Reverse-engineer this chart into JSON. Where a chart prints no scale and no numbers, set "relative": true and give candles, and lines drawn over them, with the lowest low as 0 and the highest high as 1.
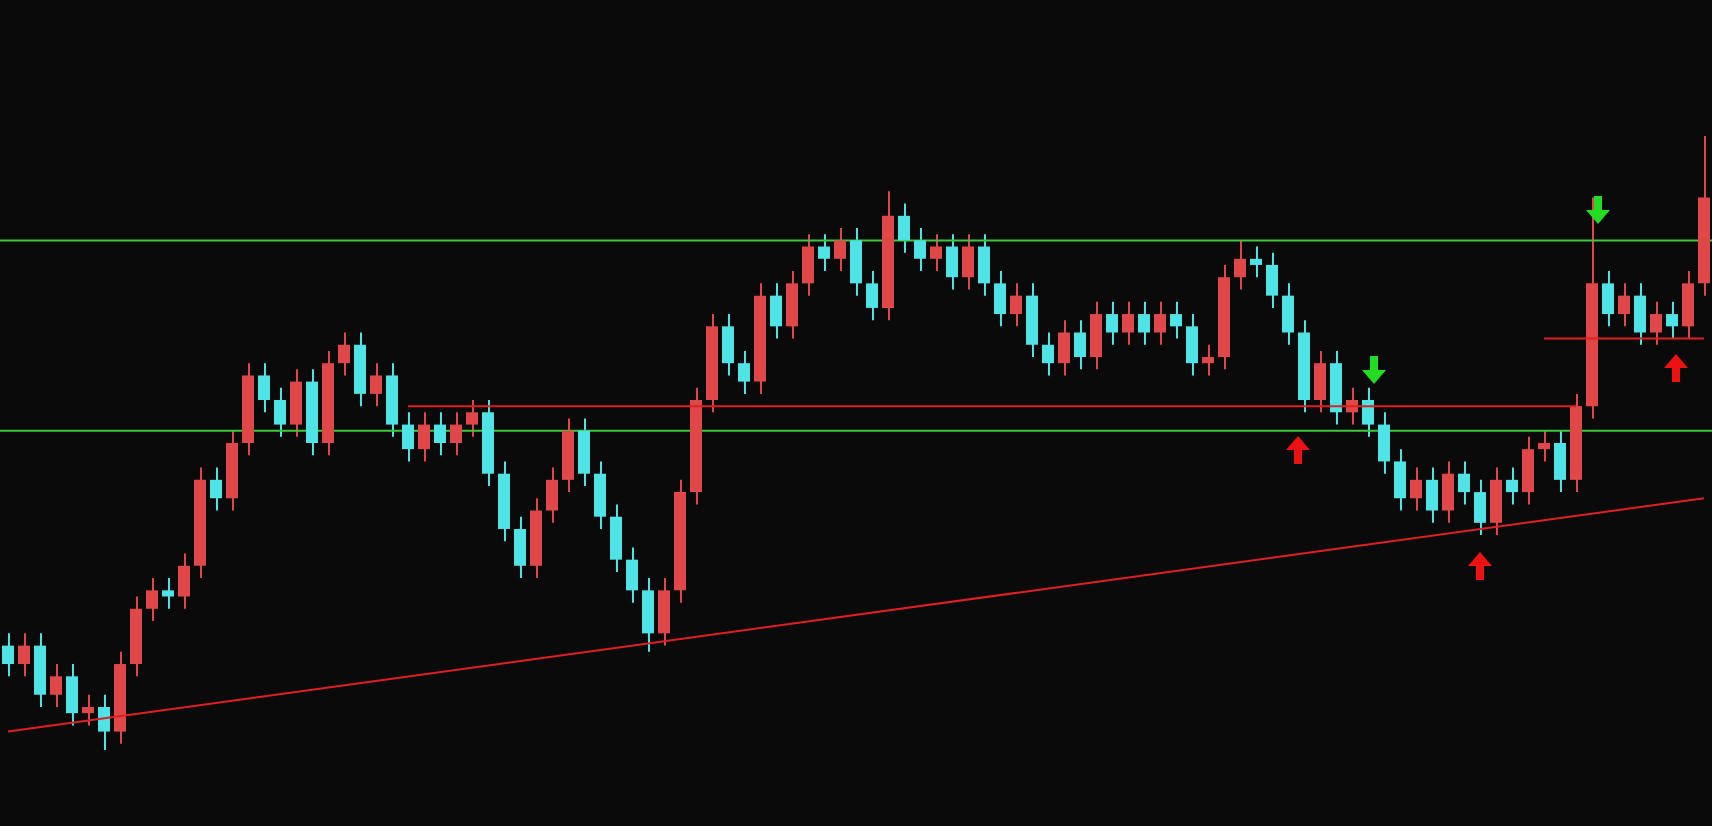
{
  "chart_data": {
    "type": "candlestick",
    "relative": true,
    "legend": false,
    "categories": [
      null,
      null,
      null,
      null,
      null,
      null,
      null,
      null,
      null,
      null,
      null,
      null,
      null,
      null,
      null,
      null,
      null,
      null,
      null,
      null,
      null,
      null,
      null,
      null,
      null,
      null,
      null,
      null,
      null,
      null,
      null,
      null,
      null,
      null,
      null,
      null,
      null,
      null,
      null,
      null,
      null,
      null,
      null,
      null,
      null,
      null,
      null,
      null,
      null,
      null,
      null,
      null,
      null,
      null,
      null,
      null,
      null,
      null,
      null,
      null,
      null,
      null,
      null,
      null,
      null,
      null,
      null,
      null,
      null,
      null,
      null,
      null,
      null,
      null,
      null,
      null,
      null,
      null,
      null,
      null,
      null,
      null,
      null,
      null,
      null,
      null,
      null,
      null,
      null,
      null,
      null,
      null,
      null,
      null,
      null,
      null,
      null,
      null,
      null,
      null,
      null,
      null,
      null,
      null,
      null,
      null,
      null
    ],
    "ohlc": [
      [
        0.17,
        0.19,
        0.12,
        0.14
      ],
      [
        0.14,
        0.19,
        0.12,
        0.17
      ],
      [
        0.17,
        0.19,
        0.07,
        0.09
      ],
      [
        0.09,
        0.14,
        0.07,
        0.12
      ],
      [
        0.12,
        0.14,
        0.04,
        0.06
      ],
      [
        0.06,
        0.09,
        0.04,
        0.07
      ],
      [
        0.07,
        0.09,
        0.0,
        0.03
      ],
      [
        0.03,
        0.16,
        0.01,
        0.14
      ],
      [
        0.14,
        0.25,
        0.12,
        0.23
      ],
      [
        0.23,
        0.28,
        0.21,
        0.26
      ],
      [
        0.26,
        0.28,
        0.23,
        0.25
      ],
      [
        0.25,
        0.32,
        0.23,
        0.3
      ],
      [
        0.3,
        0.46,
        0.28,
        0.44
      ],
      [
        0.44,
        0.46,
        0.39,
        0.41
      ],
      [
        0.41,
        0.52,
        0.39,
        0.5
      ],
      [
        0.5,
        0.63,
        0.48,
        0.61
      ],
      [
        0.61,
        0.63,
        0.55,
        0.57
      ],
      [
        0.57,
        0.59,
        0.51,
        0.53
      ],
      [
        0.53,
        0.62,
        0.51,
        0.6
      ],
      [
        0.6,
        0.62,
        0.48,
        0.5
      ],
      [
        0.5,
        0.65,
        0.48,
        0.63
      ],
      [
        0.63,
        0.68,
        0.61,
        0.66
      ],
      [
        0.66,
        0.68,
        0.56,
        0.58
      ],
      [
        0.58,
        0.63,
        0.56,
        0.61
      ],
      [
        0.61,
        0.63,
        0.51,
        0.53
      ],
      [
        0.53,
        0.55,
        0.47,
        0.49
      ],
      [
        0.49,
        0.55,
        0.47,
        0.53
      ],
      [
        0.53,
        0.55,
        0.48,
        0.5
      ],
      [
        0.5,
        0.55,
        0.48,
        0.53
      ],
      [
        0.53,
        0.57,
        0.51,
        0.55
      ],
      [
        0.55,
        0.57,
        0.43,
        0.45
      ],
      [
        0.45,
        0.47,
        0.34,
        0.36
      ],
      [
        0.36,
        0.38,
        0.28,
        0.3
      ],
      [
        0.3,
        0.41,
        0.28,
        0.39
      ],
      [
        0.39,
        0.46,
        0.37,
        0.44
      ],
      [
        0.44,
        0.54,
        0.42,
        0.52
      ],
      [
        0.52,
        0.54,
        0.43,
        0.45
      ],
      [
        0.45,
        0.47,
        0.36,
        0.38
      ],
      [
        0.38,
        0.4,
        0.29,
        0.31
      ],
      [
        0.31,
        0.33,
        0.24,
        0.26
      ],
      [
        0.26,
        0.28,
        0.16,
        0.19
      ],
      [
        0.19,
        0.28,
        0.17,
        0.26
      ],
      [
        0.26,
        0.44,
        0.24,
        0.42
      ],
      [
        0.42,
        0.59,
        0.4,
        0.57
      ],
      [
        0.57,
        0.71,
        0.55,
        0.69
      ],
      [
        0.69,
        0.71,
        0.61,
        0.63
      ],
      [
        0.63,
        0.65,
        0.58,
        0.6
      ],
      [
        0.6,
        0.76,
        0.58,
        0.74
      ],
      [
        0.74,
        0.76,
        0.67,
        0.69
      ],
      [
        0.69,
        0.78,
        0.67,
        0.76
      ],
      [
        0.76,
        0.84,
        0.74,
        0.82
      ],
      [
        0.82,
        0.84,
        0.78,
        0.8
      ],
      [
        0.8,
        0.85,
        0.78,
        0.83
      ],
      [
        0.83,
        0.85,
        0.74,
        0.76
      ],
      [
        0.76,
        0.78,
        0.7,
        0.72
      ],
      [
        0.72,
        0.91,
        0.7,
        0.87
      ],
      [
        0.87,
        0.89,
        0.81,
        0.83
      ],
      [
        0.83,
        0.85,
        0.78,
        0.8
      ],
      [
        0.8,
        0.84,
        0.78,
        0.82
      ],
      [
        0.82,
        0.84,
        0.75,
        0.77
      ],
      [
        0.77,
        0.84,
        0.75,
        0.82
      ],
      [
        0.82,
        0.84,
        0.74,
        0.76
      ],
      [
        0.76,
        0.78,
        0.69,
        0.71
      ],
      [
        0.71,
        0.76,
        0.69,
        0.74
      ],
      [
        0.74,
        0.76,
        0.64,
        0.66
      ],
      [
        0.66,
        0.68,
        0.61,
        0.63
      ],
      [
        0.63,
        0.7,
        0.61,
        0.68
      ],
      [
        0.68,
        0.7,
        0.62,
        0.64
      ],
      [
        0.64,
        0.73,
        0.62,
        0.71
      ],
      [
        0.71,
        0.73,
        0.66,
        0.68
      ],
      [
        0.68,
        0.73,
        0.66,
        0.71
      ],
      [
        0.71,
        0.73,
        0.66,
        0.68
      ],
      [
        0.68,
        0.73,
        0.66,
        0.71
      ],
      [
        0.71,
        0.73,
        0.67,
        0.69
      ],
      [
        0.69,
        0.71,
        0.61,
        0.63
      ],
      [
        0.63,
        0.66,
        0.61,
        0.64
      ],
      [
        0.64,
        0.79,
        0.62,
        0.77
      ],
      [
        0.77,
        0.83,
        0.75,
        0.8
      ],
      [
        0.8,
        0.82,
        0.77,
        0.79
      ],
      [
        0.79,
        0.81,
        0.72,
        0.74
      ],
      [
        0.74,
        0.76,
        0.66,
        0.68
      ],
      [
        0.68,
        0.7,
        0.55,
        0.57
      ],
      [
        0.57,
        0.65,
        0.55,
        0.63
      ],
      [
        0.63,
        0.65,
        0.53,
        0.55
      ],
      [
        0.55,
        0.59,
        0.53,
        0.57
      ],
      [
        0.57,
        0.59,
        0.51,
        0.53
      ],
      [
        0.53,
        0.55,
        0.45,
        0.47
      ],
      [
        0.47,
        0.49,
        0.39,
        0.41
      ],
      [
        0.41,
        0.46,
        0.39,
        0.44
      ],
      [
        0.44,
        0.46,
        0.37,
        0.39
      ],
      [
        0.39,
        0.47,
        0.37,
        0.45
      ],
      [
        0.45,
        0.47,
        0.4,
        0.42
      ],
      [
        0.42,
        0.44,
        0.35,
        0.37
      ],
      [
        0.37,
        0.46,
        0.35,
        0.44
      ],
      [
        0.44,
        0.46,
        0.4,
        0.42
      ],
      [
        0.42,
        0.51,
        0.4,
        0.49
      ],
      [
        0.49,
        0.52,
        0.47,
        0.5
      ],
      [
        0.5,
        0.52,
        0.42,
        0.44
      ],
      [
        0.44,
        0.58,
        0.42,
        0.56
      ],
      [
        0.56,
        0.9,
        0.54,
        0.76
      ],
      [
        0.76,
        0.78,
        0.69,
        0.71
      ],
      [
        0.71,
        0.76,
        0.69,
        0.74
      ],
      [
        0.74,
        0.76,
        0.66,
        0.68
      ],
      [
        0.68,
        0.73,
        0.66,
        0.71
      ],
      [
        0.71,
        0.73,
        0.67,
        0.69
      ],
      [
        0.69,
        0.78,
        0.67,
        0.76
      ],
      [
        0.76,
        1.0,
        0.74,
        0.9
      ]
    ],
    "colors": [
      "#4fe3e8",
      "#e04848",
      "#4fe3e8",
      "#e04848",
      "#4fe3e8",
      "#e04848",
      "#4fe3e8",
      "#e04848",
      "#e04848",
      "#e04848",
      "#4fe3e8",
      "#e04848",
      "#e04848",
      "#4fe3e8",
      "#e04848",
      "#e04848",
      "#4fe3e8",
      "#4fe3e8",
      "#e04848",
      "#4fe3e8",
      "#e04848",
      "#e04848",
      "#4fe3e8",
      "#e04848",
      "#4fe3e8",
      "#4fe3e8",
      "#e04848",
      "#4fe3e8",
      "#e04848",
      "#e04848",
      "#4fe3e8",
      "#4fe3e8",
      "#4fe3e8",
      "#e04848",
      "#e04848",
      "#e04848",
      "#4fe3e8",
      "#4fe3e8",
      "#4fe3e8",
      "#4fe3e8",
      "#4fe3e8",
      "#e04848",
      "#e04848",
      "#e04848",
      "#e04848",
      "#4fe3e8",
      "#4fe3e8",
      "#e04848",
      "#4fe3e8",
      "#e04848",
      "#e04848",
      "#4fe3e8",
      "#e04848",
      "#4fe3e8",
      "#4fe3e8",
      "#e04848",
      "#4fe3e8",
      "#4fe3e8",
      "#e04848",
      "#4fe3e8",
      "#e04848",
      "#4fe3e8",
      "#4fe3e8",
      "#e04848",
      "#4fe3e8",
      "#4fe3e8",
      "#e04848",
      "#4fe3e8",
      "#e04848",
      "#4fe3e8",
      "#e04848",
      "#4fe3e8",
      "#e04848",
      "#4fe3e8",
      "#4fe3e8",
      "#e04848",
      "#e04848",
      "#e04848",
      "#4fe3e8",
      "#4fe3e8",
      "#4fe3e8",
      "#4fe3e8",
      "#e04848",
      "#4fe3e8",
      "#e04848",
      "#4fe3e8",
      "#4fe3e8",
      "#4fe3e8",
      "#e04848",
      "#4fe3e8",
      "#e04848",
      "#4fe3e8",
      "#4fe3e8",
      "#e04848",
      "#4fe3e8",
      "#e04848",
      "#e04848",
      "#4fe3e8",
      "#e04848",
      "#e04848",
      "#4fe3e8",
      "#e04848",
      "#4fe3e8",
      "#e04848",
      "#4fe3e8",
      "#e04848",
      "#e04848"
    ],
    "series": [
      {
        "type": "line",
        "color": "#e02020",
        "values": [
          0.03,
          null,
          null,
          null,
          null,
          null,
          null,
          null,
          null,
          null,
          null,
          null,
          null,
          null,
          null,
          null,
          null,
          null,
          null,
          null,
          null,
          null,
          null,
          null,
          null,
          null,
          null,
          null,
          null,
          null,
          null,
          null,
          null,
          null,
          null,
          null,
          null,
          null,
          null,
          null,
          null,
          null,
          null,
          null,
          null,
          null,
          null,
          null,
          null,
          null,
          null,
          null,
          null,
          null,
          null,
          null,
          null,
          null,
          null,
          null,
          null,
          null,
          null,
          null,
          null,
          null,
          null,
          null,
          null,
          null,
          null,
          null,
          null,
          null,
          null,
          null,
          null,
          null,
          null,
          null,
          null,
          null,
          null,
          null,
          null,
          null,
          null,
          null,
          null,
          null,
          null,
          null,
          null,
          null,
          null,
          null,
          null,
          null,
          null,
          null,
          null,
          null,
          null,
          null,
          null,
          null,
          0.41
        ]
      },
      {
        "type": "line",
        "color": "#e02020",
        "values": [
          null,
          null,
          null,
          null,
          null,
          null,
          null,
          null,
          null,
          null,
          null,
          null,
          null,
          null,
          null,
          null,
          null,
          null,
          null,
          null,
          null,
          null,
          null,
          null,
          null,
          0.56,
          null,
          null,
          null,
          null,
          null,
          null,
          null,
          null,
          null,
          null,
          null,
          null,
          null,
          null,
          null,
          null,
          null,
          null,
          null,
          null,
          null,
          null,
          null,
          null,
          null,
          null,
          null,
          null,
          null,
          null,
          null,
          null,
          null,
          null,
          null,
          null,
          null,
          null,
          null,
          null,
          null,
          null,
          null,
          null,
          null,
          null,
          null,
          null,
          null,
          null,
          null,
          null,
          null,
          null,
          null,
          null,
          null,
          null,
          null,
          null,
          null,
          null,
          null,
          null,
          null,
          null,
          null,
          null,
          null,
          null,
          null,
          null,
          0.56,
          null,
          null,
          null,
          null,
          null,
          null,
          null,
          null
        ]
      },
      {
        "type": "line",
        "color": "#e02020",
        "values": [
          null,
          null,
          null,
          null,
          null,
          null,
          null,
          null,
          null,
          null,
          null,
          null,
          null,
          null,
          null,
          null,
          null,
          null,
          null,
          null,
          null,
          null,
          null,
          null,
          null,
          null,
          null,
          null,
          null,
          null,
          null,
          null,
          null,
          null,
          null,
          null,
          null,
          null,
          null,
          null,
          null,
          null,
          null,
          null,
          null,
          null,
          null,
          null,
          null,
          null,
          null,
          null,
          null,
          null,
          null,
          null,
          null,
          null,
          null,
          null,
          null,
          null,
          null,
          null,
          null,
          null,
          null,
          null,
          null,
          null,
          null,
          null,
          null,
          null,
          null,
          null,
          null,
          null,
          null,
          null,
          null,
          null,
          null,
          null,
          null,
          null,
          null,
          null,
          null,
          null,
          null,
          null,
          null,
          null,
          null,
          null,
          0.67,
          null,
          null,
          null,
          null,
          null,
          null,
          null,
          null,
          null,
          0.67
        ]
      }
    ],
    "ref_lines": [
      {
        "axis": "y",
        "value": 0.83,
        "color": "#3cc83c"
      },
      {
        "axis": "y",
        "value": 0.52,
        "color": "#3cc83c"
      }
    ]
  }
}
